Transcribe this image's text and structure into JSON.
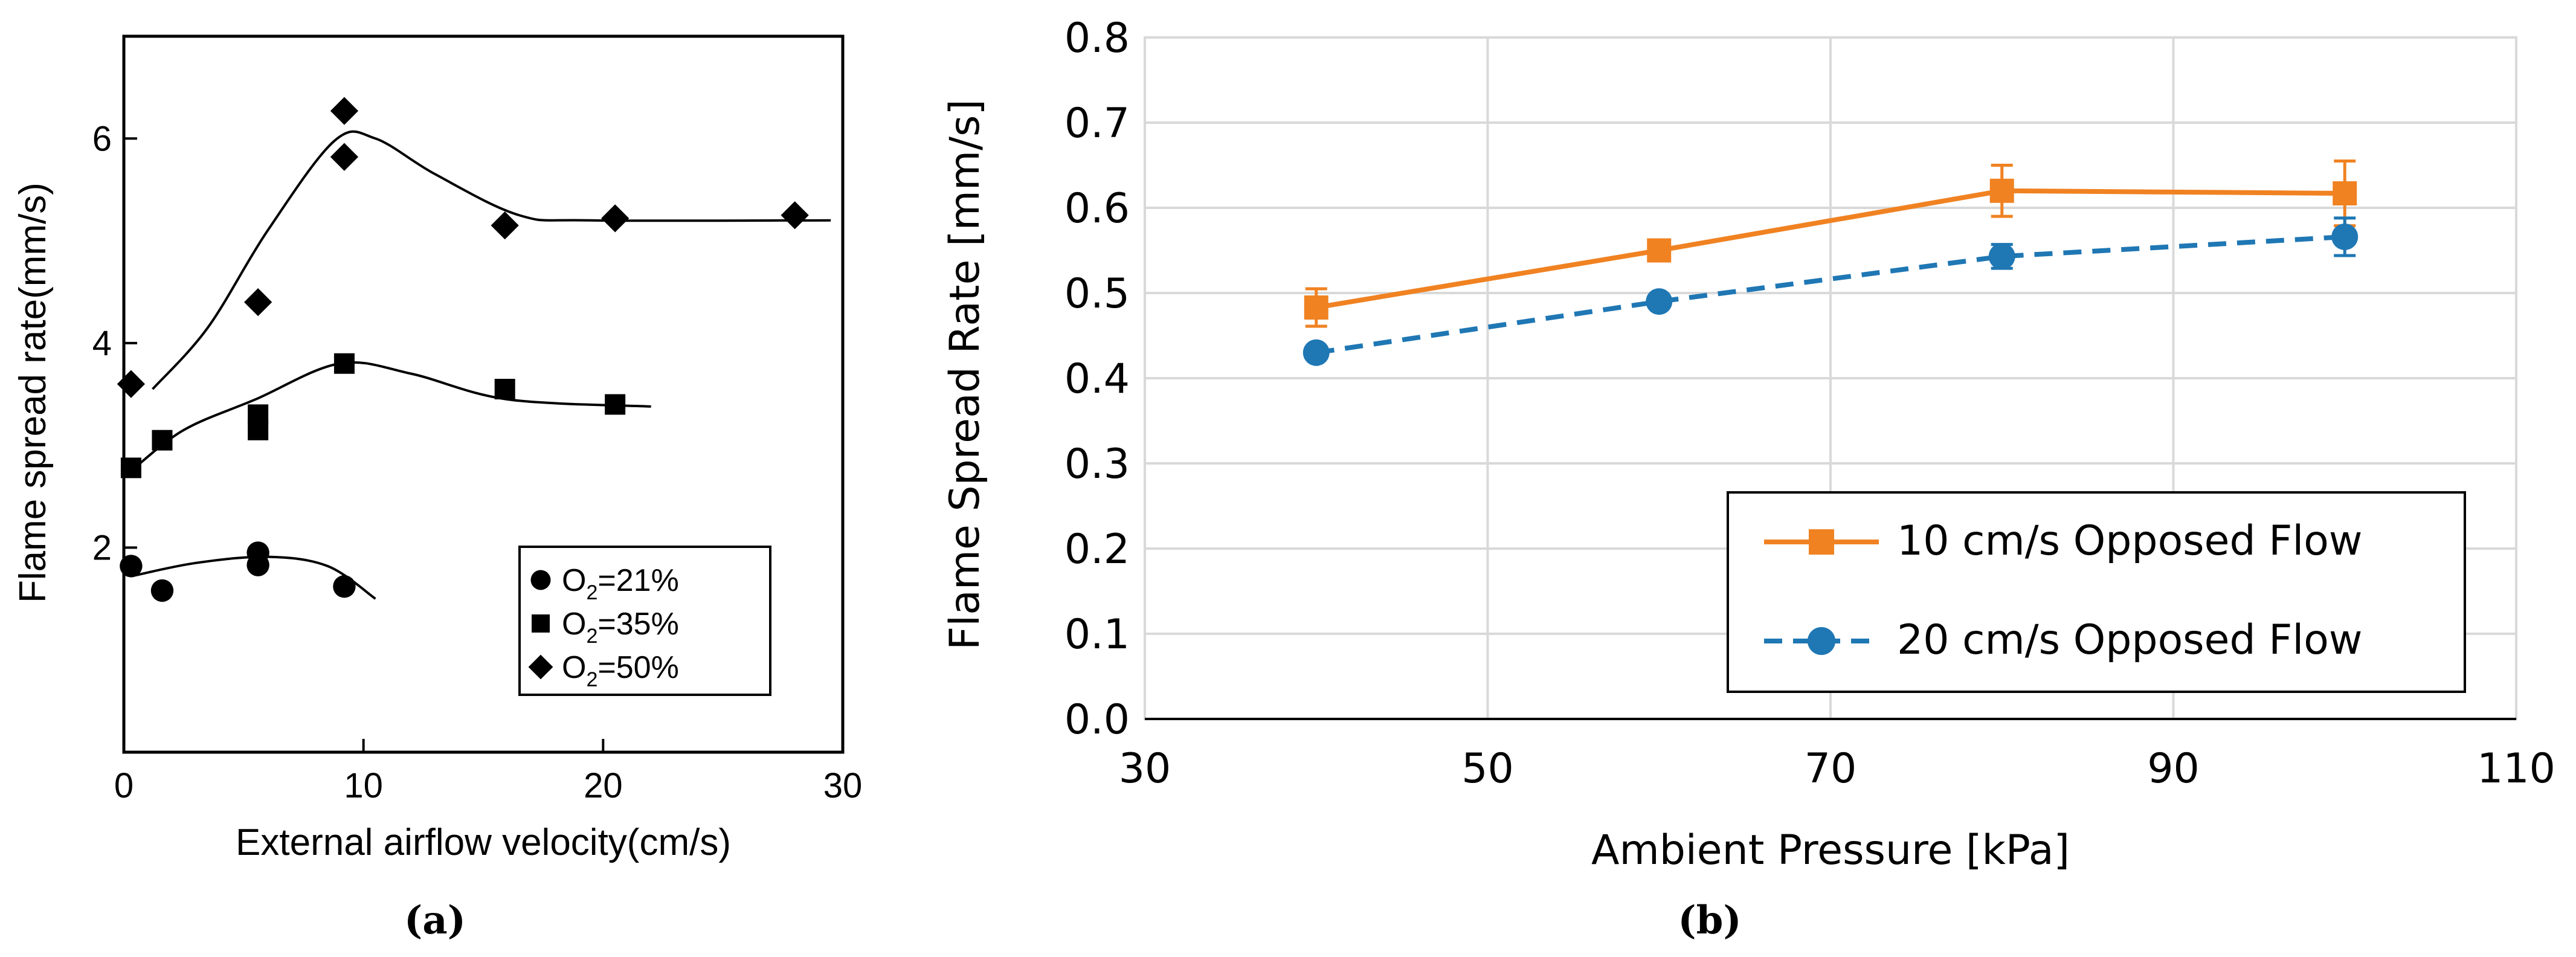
{
  "chart_data": [
    {
      "panel": "(a)",
      "type": "scatter",
      "xlabel": "External airflow velocity(cm/s)",
      "ylabel": "Flame spread rate(mm/s)",
      "xlim": [
        0,
        30
      ],
      "ylim": [
        0,
        7
      ],
      "xticks": [
        "0",
        "10",
        "20",
        "30"
      ],
      "yticks": [
        "2",
        "4",
        "6"
      ],
      "legend": {
        "location": "lower-right"
      },
      "series": [
        {
          "name": "O2=21%",
          "legend_main": "O",
          "legend_sub": "2",
          "legend_rest": "=21%",
          "marker": "circle",
          "points": [
            [
              0.3,
              1.82
            ],
            [
              1.6,
              1.58
            ],
            [
              5.6,
              1.95
            ],
            [
              5.6,
              1.83
            ],
            [
              9.2,
              1.62
            ]
          ],
          "curve": [
            [
              0.3,
              1.72
            ],
            [
              3,
              1.85
            ],
            [
              6,
              1.91
            ],
            [
              8.5,
              1.82
            ],
            [
              10.5,
              1.5
            ]
          ]
        },
        {
          "name": "O2=35%",
          "legend_main": "O",
          "legend_sub": "2",
          "legend_rest": "=35%",
          "marker": "square",
          "points": [
            [
              0.3,
              2.78
            ],
            [
              1.6,
              3.05
            ],
            [
              5.6,
              3.3
            ],
            [
              5.6,
              3.15
            ],
            [
              9.2,
              3.8
            ],
            [
              15.9,
              3.55
            ],
            [
              20.5,
              3.4
            ]
          ],
          "curve": [
            [
              0.3,
              2.75
            ],
            [
              2.5,
              3.15
            ],
            [
              5.5,
              3.45
            ],
            [
              9,
              3.8
            ],
            [
              12,
              3.7
            ],
            [
              16,
              3.45
            ],
            [
              22,
              3.38
            ]
          ]
        },
        {
          "name": "O2=50%",
          "legend_main": "O",
          "legend_sub": "2",
          "legend_rest": "=50%",
          "marker": "diamond",
          "points": [
            [
              0.3,
              3.6
            ],
            [
              5.6,
              4.4
            ],
            [
              9.2,
              6.27
            ],
            [
              9.2,
              5.82
            ],
            [
              15.9,
              5.15
            ],
            [
              20.5,
              5.22
            ],
            [
              28,
              5.25
            ]
          ],
          "curve": [
            [
              1.2,
              3.55
            ],
            [
              3.5,
              4.15
            ],
            [
              6,
              5.1
            ],
            [
              8.8,
              5.98
            ],
            [
              10.5,
              6.0
            ],
            [
              13,
              5.65
            ],
            [
              16.5,
              5.25
            ],
            [
              19.5,
              5.2
            ],
            [
              29.5,
              5.2
            ]
          ]
        }
      ]
    },
    {
      "panel": "(b)",
      "type": "line",
      "xlabel": "Ambient Pressure [kPa]",
      "ylabel": "Flame Spread Rate [mm/s]",
      "xlim": [
        30,
        110
      ],
      "ylim": [
        0.0,
        0.8
      ],
      "xticks": [
        "30",
        "50",
        "70",
        "90",
        "110"
      ],
      "yticks": [
        "0.0",
        "0.1",
        "0.2",
        "0.3",
        "0.4",
        "0.5",
        "0.6",
        "0.7",
        "0.8"
      ],
      "grid": true,
      "legend": {
        "location": "bottom-right"
      },
      "series": [
        {
          "name": "10 cm/s Opposed Flow",
          "color": "#f08222",
          "marker": "square",
          "dash": "solid",
          "x": [
            40,
            60,
            80,
            100
          ],
          "y": [
            0.483,
            0.55,
            0.62,
            0.617
          ],
          "err": [
            0.022,
            0.0,
            0.03,
            0.038
          ]
        },
        {
          "name": "20 cm/s Opposed Flow",
          "color": "#1f77b4",
          "marker": "circle",
          "dash": "dashed",
          "x": [
            40,
            60,
            80,
            100
          ],
          "y": [
            0.43,
            0.49,
            0.543,
            0.566
          ],
          "err": [
            0.0,
            0.0,
            0.014,
            0.022
          ]
        }
      ]
    }
  ]
}
